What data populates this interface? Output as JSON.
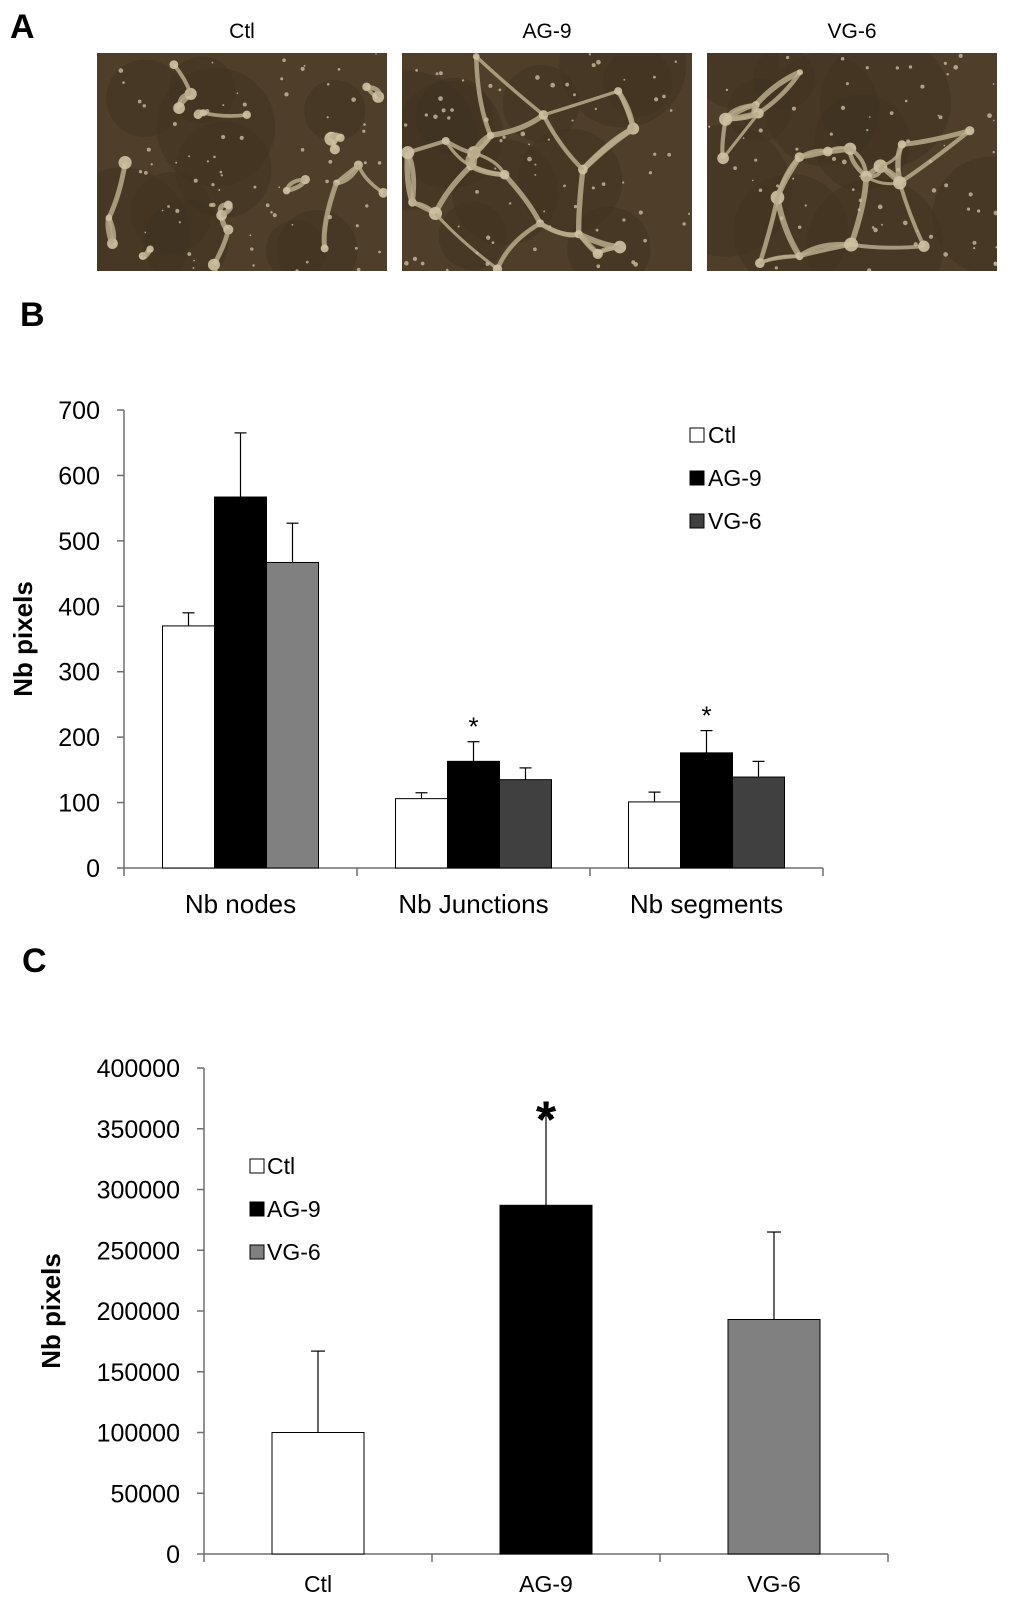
{
  "panels": {
    "a": "A",
    "b": "B",
    "c": "C"
  },
  "micrographs": [
    {
      "label": "Ctl"
    },
    {
      "label": "AG-9"
    },
    {
      "label": "VG-6"
    }
  ],
  "chart_data": [
    {
      "type": "bar",
      "panel": "B",
      "categories": [
        "Nb nodes",
        "Nb Junctions",
        "Nb segments"
      ],
      "series": [
        {
          "name": "Ctl",
          "color": "#ffffff",
          "values": [
            370,
            106,
            101
          ],
          "errors": [
            20,
            9,
            15
          ]
        },
        {
          "name": "AG-9",
          "color": "#000000",
          "values": [
            567,
            163,
            176
          ],
          "errors": [
            98,
            30,
            34
          ]
        },
        {
          "name": "VG-6",
          "color_by_category": [
            "#808080",
            "#404040",
            "#404040"
          ],
          "color": "#404040",
          "values": [
            467,
            135,
            139
          ],
          "errors": [
            60,
            18,
            24
          ]
        }
      ],
      "significance": [
        {
          "category": "Nb Junctions",
          "series": "AG-9",
          "mark": "*"
        },
        {
          "category": "Nb segments",
          "series": "AG-9",
          "mark": "*"
        }
      ],
      "yticks": [
        "0",
        "100",
        "200",
        "300",
        "400",
        "500",
        "600",
        "700"
      ],
      "ylim": [
        0,
        700
      ],
      "ylabel": "Nb pixels",
      "legend": "top-right",
      "grid": false
    },
    {
      "type": "bar",
      "panel": "C",
      "categories": [
        "Ctl",
        "AG-9",
        "VG-6"
      ],
      "values": [
        100000,
        287000,
        193000
      ],
      "errors": [
        67000,
        74000,
        72000
      ],
      "colors": [
        "#ffffff",
        "#000000",
        "#808080"
      ],
      "legend_entries": [
        {
          "name": "Ctl",
          "color": "#ffffff"
        },
        {
          "name": "AG-9",
          "color": "#000000"
        },
        {
          "name": "VG-6",
          "color": "#808080"
        }
      ],
      "significance": [
        {
          "category": "AG-9",
          "mark": "*"
        }
      ],
      "yticks": [
        "0",
        "50000",
        "100000",
        "150000",
        "200000",
        "250000",
        "300000",
        "350000",
        "400000"
      ],
      "ylim": [
        0,
        400000
      ],
      "ylabel": "Nb pixels",
      "legend": "left",
      "grid": false
    }
  ]
}
